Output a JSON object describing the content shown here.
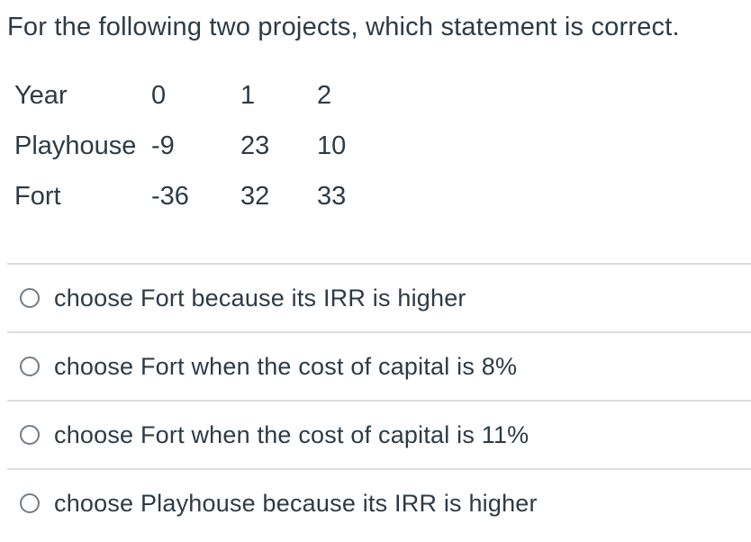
{
  "question": {
    "title": "For the following two projects, which statement is correct."
  },
  "table": {
    "rows": [
      [
        "Year",
        "0",
        "1",
        "2"
      ],
      [
        "Playhouse",
        "-9",
        "23",
        "10"
      ],
      [
        "Fort",
        "-36",
        "32",
        "33"
      ]
    ]
  },
  "options": [
    {
      "label": "choose Fort because its IRR is higher",
      "selected": false
    },
    {
      "label": "choose Fort when the cost of capital is 8%",
      "selected": false
    },
    {
      "label": "choose Fort when the cost of capital is 11%",
      "selected": false
    },
    {
      "label": "choose Playhouse because its IRR is higher",
      "selected": false
    }
  ],
  "colors": {
    "text": "#2D3B45",
    "divider": "#DCDCDC",
    "radio_border": "#6F7D88",
    "background": "#FFFFFF"
  }
}
